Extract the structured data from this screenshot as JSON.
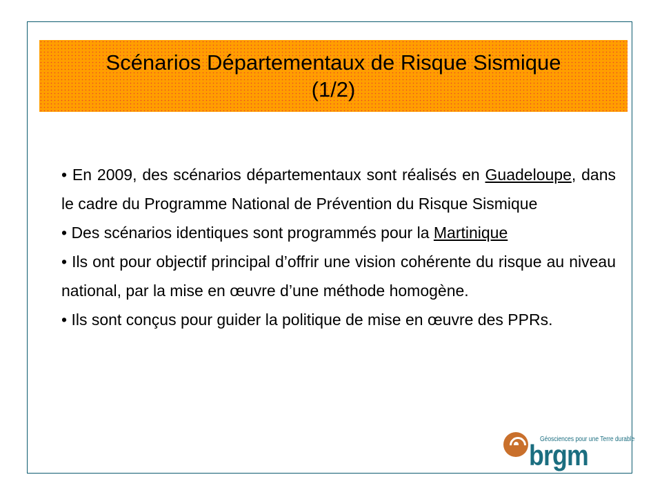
{
  "title": {
    "line1": "Scénarios Départementaux de Risque Sismique",
    "line2": "(1/2)"
  },
  "bullets": [
    {
      "pre": "• En 2009, des scénarios départementaux sont réalisés en ",
      "link": "Guadeloupe",
      "post": ", dans le cadre du Programme National de Prévention du Risque Sismique"
    },
    {
      "pre": "• Des scénarios identiques sont programmés pour la ",
      "link": "Martinique",
      "post": ""
    },
    {
      "pre": "• Ils ont pour objectif principal d’offrir une vision cohérente du risque au niveau national, par la mise en œuvre d’une méthode homogène.",
      "link": "",
      "post": ""
    },
    {
      "pre": "• Ils sont conçus pour guider la politique de mise en œuvre des PPRs.",
      "link": "",
      "post": ""
    }
  ],
  "logo": {
    "tagline": "Géosciences pour une Terre durable",
    "brand": "brgm"
  },
  "colors": {
    "title_bg": "#ff9e00",
    "frame": "#0b5a6e",
    "brand": "#1b6e80",
    "logo_sun": "#c9702c"
  }
}
